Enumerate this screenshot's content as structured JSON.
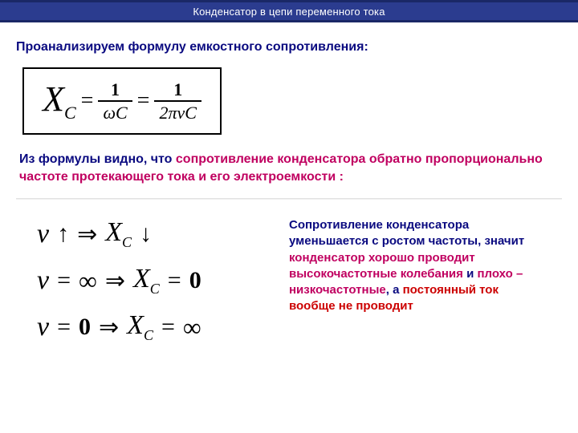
{
  "header": {
    "title": "Конденсатор в цепи переменного тока"
  },
  "intro": "Проанализируем формулу емкостного сопротивления:",
  "formula": {
    "symbol_X": "X",
    "symbol_C": "C",
    "eq": "=",
    "num1": "1",
    "den1": "ωC",
    "num2": "1",
    "den2": "2πνC"
  },
  "para1": {
    "lead": "Из формулы видно, что ",
    "emph": "сопротивление конденсатора обратно пропорционально частоте протекающего тока и его электроемкости",
    "tail": " :"
  },
  "relations": {
    "r1": {
      "nu": "ν",
      "arr1": "↑",
      "imp": "⇒",
      "X": "X",
      "C": "C",
      "arr2": "↓"
    },
    "r2": {
      "nu": "ν",
      "eq": "=",
      "val": "∞",
      "imp": "⇒",
      "X": "X",
      "C": "C",
      "eq2": "=",
      "res": "0"
    },
    "r3": {
      "nu": "ν",
      "eq": "=",
      "val": "0",
      "imp": "⇒",
      "X": "X",
      "C": "C",
      "eq2": "=",
      "res": "∞"
    }
  },
  "para2": {
    "p1": "Сопротивление конденсатора уменьшается с ростом частоты, значит ",
    "p2": "конденсатор хорошо проводит высокочастотные колебания",
    "p3": " и ",
    "p4": "плохо – низкочастотные",
    "p5": ", а ",
    "p6": "постоянный ток вообще не проводит"
  },
  "style": {
    "header_bg": "#2b3c8f",
    "header_border": "#1a2866",
    "blue": "#0a0a80",
    "pink": "#c00060",
    "red": "#cc0000",
    "formula_border": "#000000",
    "body_bg": "#ffffff"
  }
}
